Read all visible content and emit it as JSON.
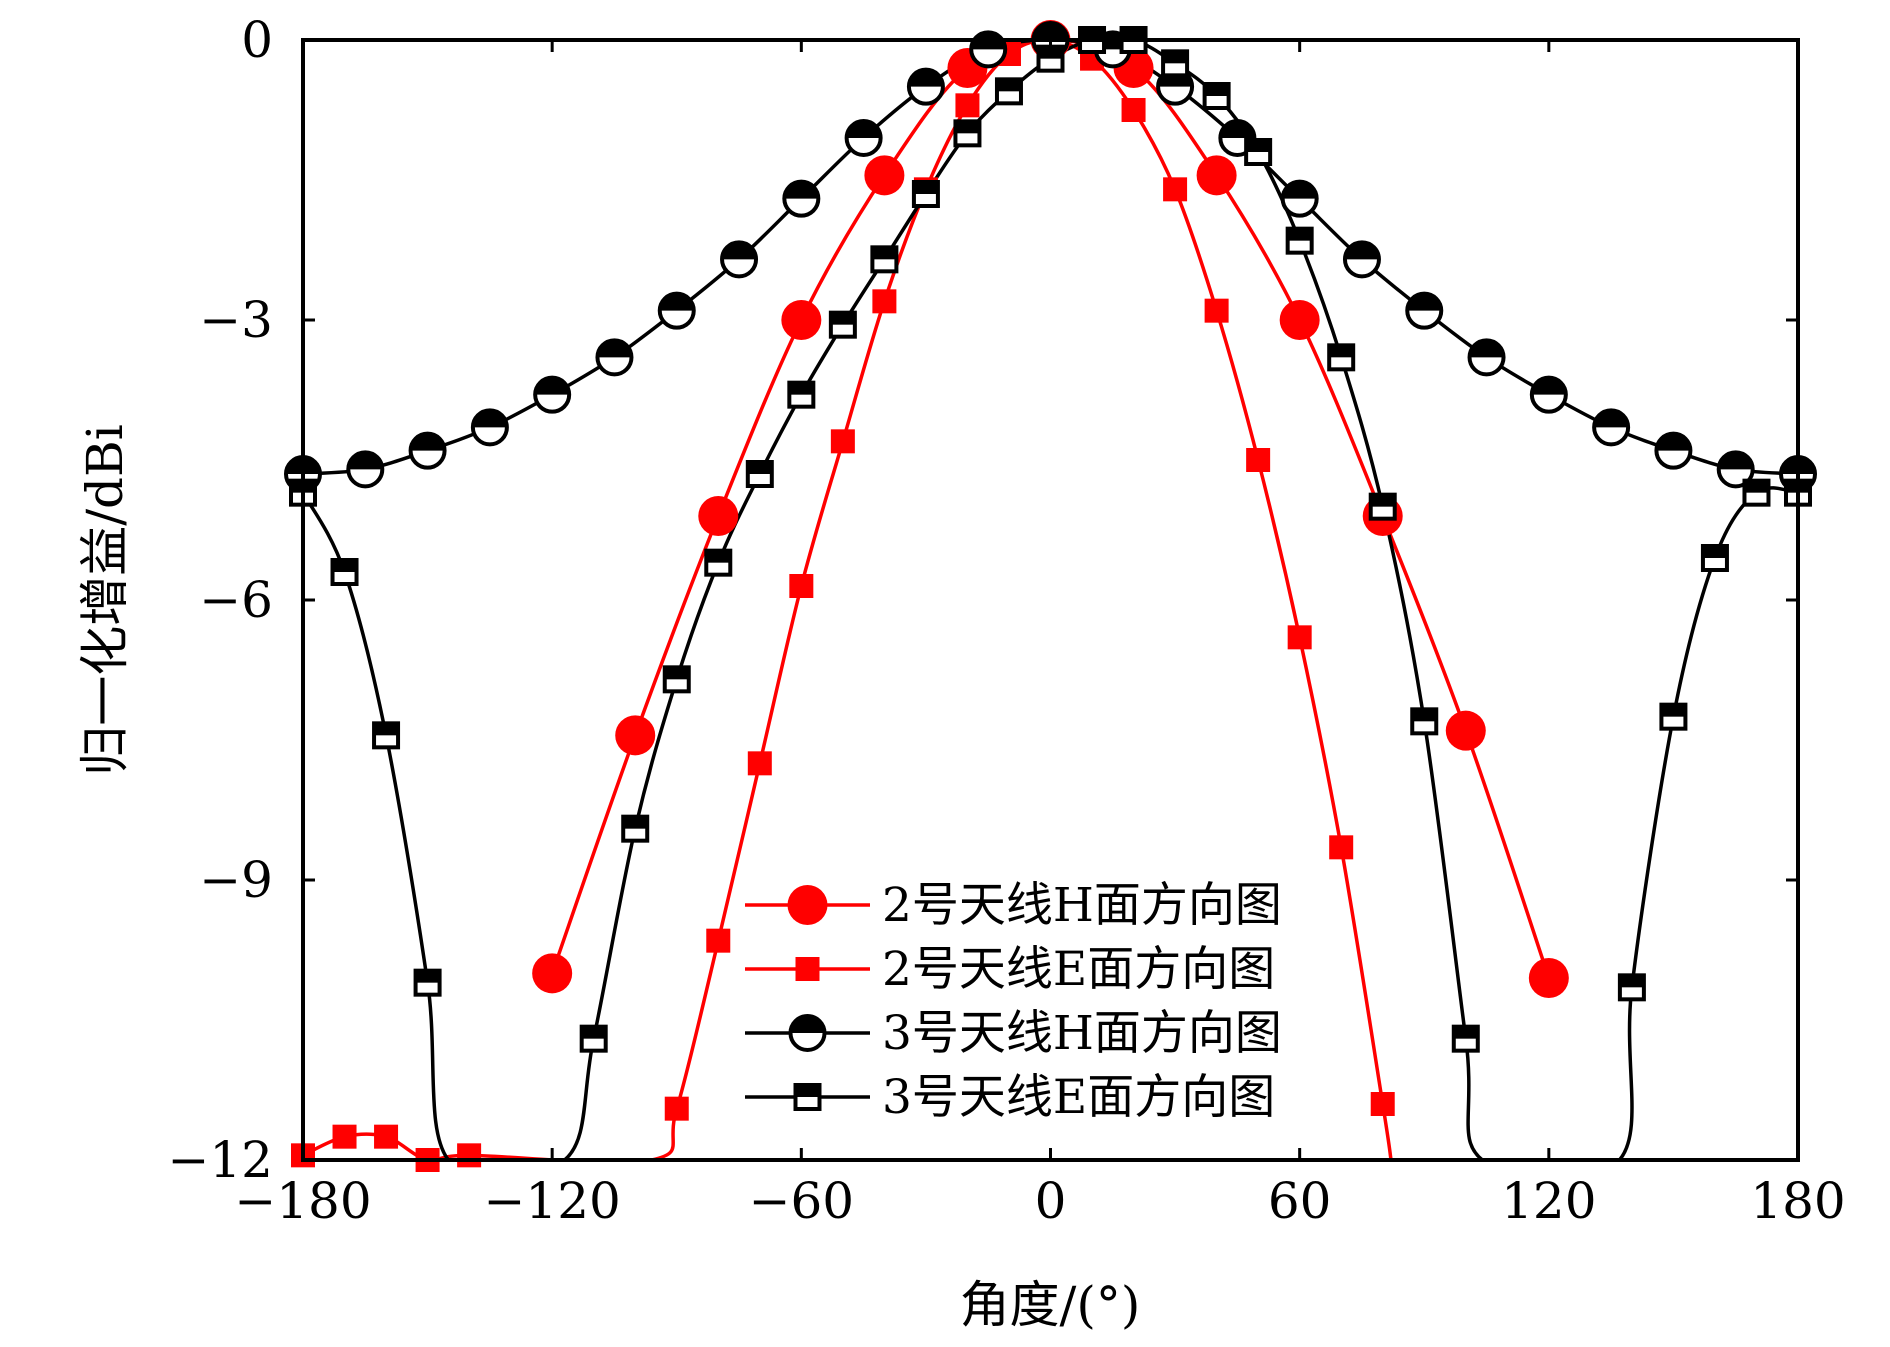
{
  "chart_data": {
    "type": "line",
    "title": "",
    "xlabel": "角度/(°)",
    "ylabel": "归一化增益/dBi",
    "xlim": [
      -180,
      180
    ],
    "ylim": [
      -12,
      0
    ],
    "xticks": [
      -180,
      -120,
      -60,
      0,
      60,
      120,
      180
    ],
    "yticks": [
      0,
      -3,
      -6,
      -9,
      -12
    ],
    "xtick_labels": [
      "−180",
      "−120",
      "−60",
      "0",
      "60",
      "120",
      "180"
    ],
    "ytick_labels": [
      "0",
      "−3",
      "−6",
      "−9",
      "−12"
    ],
    "legend_position": "bottom-center",
    "series": [
      {
        "name": "2号天线H面方向图",
        "color": "#ff0000",
        "marker": "filled-circle",
        "x": [
          -120,
          -100,
          -80,
          -60,
          -40,
          -20,
          0,
          20,
          40,
          60,
          80,
          100,
          120
        ],
        "y": [
          -10.0,
          -7.45,
          -5.1,
          -3.0,
          -1.45,
          -0.3,
          0.0,
          -0.3,
          -1.45,
          -3.0,
          -5.1,
          -7.4,
          -10.05
        ]
      },
      {
        "name": "2号天线E面方向图",
        "color": "#ff0000",
        "marker": "filled-square",
        "x": [
          -180,
          -170,
          -160,
          -150,
          -140,
          -90,
          -80,
          -70,
          -60,
          -50,
          -40,
          -30,
          -20,
          -10,
          0,
          10,
          20,
          30,
          40,
          50,
          60,
          70,
          80
        ],
        "y": [
          -11.95,
          -11.75,
          -11.75,
          -12.0,
          -11.95,
          -11.45,
          -9.65,
          -7.75,
          -5.85,
          -4.3,
          -2.8,
          -1.6,
          -0.7,
          -0.15,
          0.0,
          -0.2,
          -0.75,
          -1.6,
          -2.9,
          -4.5,
          -6.4,
          -8.65,
          -11.4
        ],
        "curve_x": [
          -180,
          -170,
          -160,
          -150,
          -140,
          -96,
          -90,
          -80,
          -70,
          -60,
          -50,
          -40,
          -30,
          -20,
          -10,
          0,
          10,
          20,
          30,
          40,
          50,
          60,
          70,
          80,
          82
        ],
        "curve_y": [
          -11.95,
          -11.75,
          -11.75,
          -12.0,
          -11.95,
          -12.0,
          -11.45,
          -9.65,
          -7.75,
          -5.85,
          -4.3,
          -2.8,
          -1.6,
          -0.7,
          -0.15,
          0.0,
          -0.2,
          -0.75,
          -1.6,
          -2.9,
          -4.5,
          -6.4,
          -8.65,
          -11.4,
          -12.0
        ]
      },
      {
        "name": "3号天线H面方向图",
        "color": "#000000",
        "marker": "half-filled-circle",
        "x": [
          -180,
          -165,
          -150,
          -135,
          -120,
          -105,
          -90,
          -75,
          -60,
          -45,
          -30,
          -15,
          0,
          15,
          30,
          45,
          60,
          75,
          90,
          105,
          120,
          135,
          150,
          165,
          180
        ],
        "y": [
          -4.65,
          -4.6,
          -4.4,
          -4.15,
          -3.8,
          -3.4,
          -2.9,
          -2.35,
          -1.7,
          -1.05,
          -0.5,
          -0.1,
          0.0,
          -0.1,
          -0.5,
          -1.05,
          -1.7,
          -2.35,
          -2.9,
          -3.4,
          -3.8,
          -4.15,
          -4.4,
          -4.6,
          -4.65
        ]
      },
      {
        "name": "3号天线E面方向图",
        "color": "#000000",
        "marker": "half-filled-square",
        "x": [
          -180,
          -170,
          -160,
          -150,
          -110,
          -100,
          -90,
          -80,
          -70,
          -60,
          -50,
          -40,
          -30,
          -20,
          -10,
          0,
          10,
          20,
          30,
          40,
          50,
          60,
          70,
          80,
          90,
          100,
          140,
          150,
          160,
          170,
          180
        ],
        "y": [
          -4.85,
          -5.7,
          -7.45,
          -10.1,
          -10.7,
          -8.45,
          -6.85,
          -5.6,
          -4.65,
          -3.8,
          -3.05,
          -2.35,
          -1.65,
          -1.0,
          -0.55,
          -0.2,
          0.0,
          0.0,
          -0.25,
          -0.6,
          -1.2,
          -2.15,
          -3.4,
          -5.0,
          -7.3,
          -10.7,
          -10.15,
          -7.25,
          -5.55,
          -4.85,
          -4.85
        ],
        "curve_x": [
          -180,
          -170,
          -160,
          -150,
          -145,
          -117,
          -110,
          -100,
          -90,
          -80,
          -70,
          -60,
          -50,
          -40,
          -30,
          -20,
          -10,
          0,
          10,
          20,
          30,
          40,
          50,
          60,
          70,
          80,
          90,
          100,
          104,
          137,
          140,
          150,
          160,
          170,
          180
        ],
        "curve_y": [
          -4.85,
          -5.7,
          -7.45,
          -10.1,
          -12.0,
          -12.0,
          -10.7,
          -8.45,
          -6.85,
          -5.6,
          -4.65,
          -3.8,
          -3.05,
          -2.35,
          -1.65,
          -1.0,
          -0.55,
          -0.2,
          0.0,
          0.0,
          -0.25,
          -0.6,
          -1.2,
          -2.15,
          -3.4,
          -5.0,
          -7.3,
          -10.7,
          -12.0,
          -12.0,
          -10.15,
          -7.25,
          -5.55,
          -4.85,
          -4.85
        ]
      }
    ]
  }
}
